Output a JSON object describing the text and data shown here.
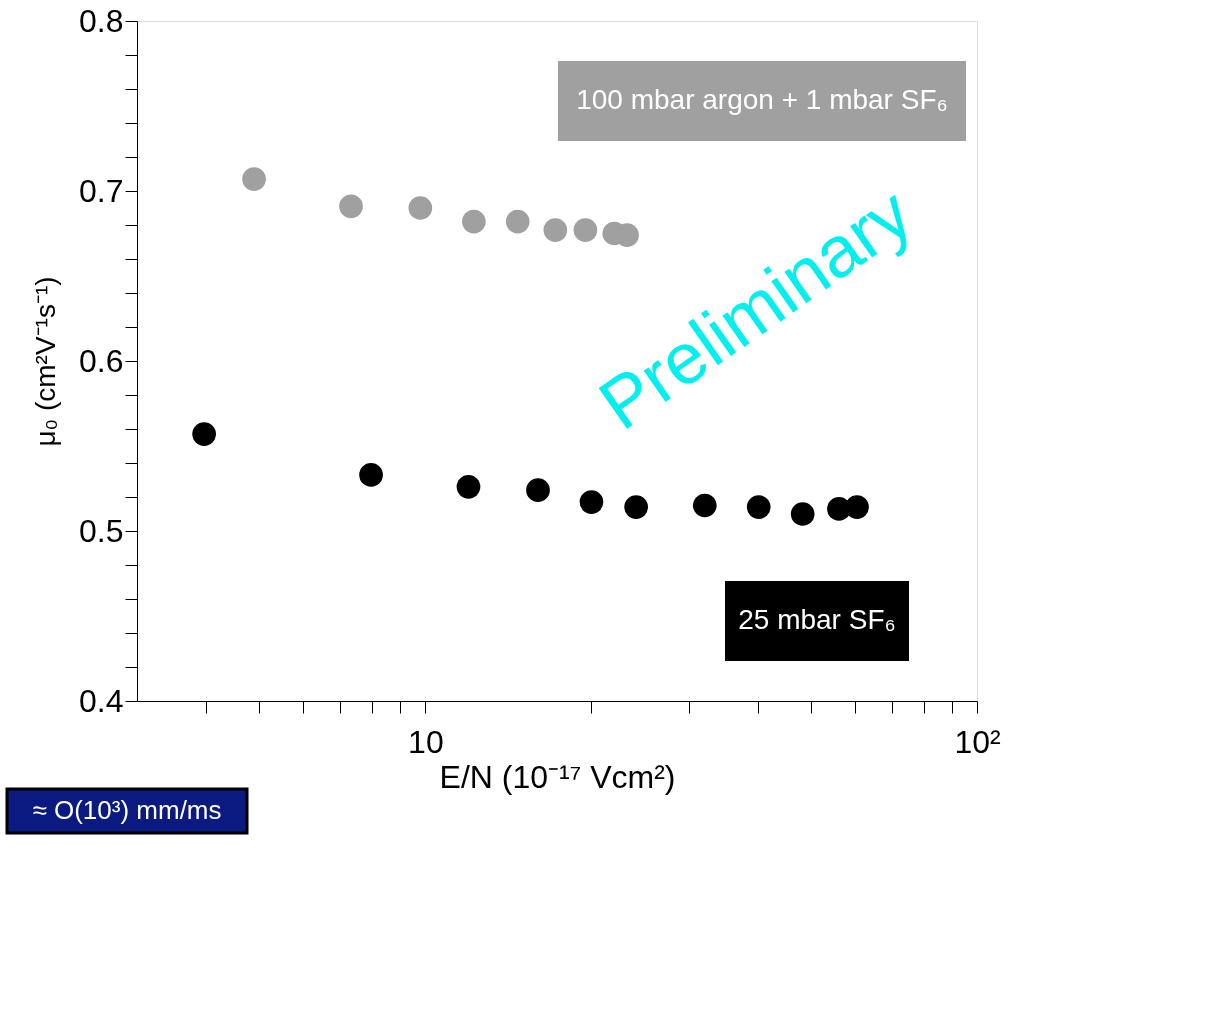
{
  "chart_data": {
    "type": "scatter",
    "xlabel": "E/N (10⁻¹⁷ Vcm²)",
    "ylabel": "μ₀ (cm²V⁻¹s⁻¹)",
    "log": "x",
    "xlim": [
      3,
      100
    ],
    "ylim": [
      0.4,
      0.8
    ],
    "xticks": [
      {
        "value": 4,
        "label": null
      },
      {
        "value": 5,
        "label": null
      },
      {
        "value": 6,
        "label": null
      },
      {
        "value": 7,
        "label": null
      },
      {
        "value": 8,
        "label": null
      },
      {
        "value": 9,
        "label": null
      },
      10,
      {
        "value": 20,
        "label": null
      },
      {
        "value": 30,
        "label": null
      },
      {
        "value": 40,
        "label": null
      },
      {
        "value": 50,
        "label": null
      },
      {
        "value": 60,
        "label": null
      },
      {
        "value": 70,
        "label": null
      },
      {
        "value": 80,
        "label": null
      },
      {
        "value": 90,
        "label": null
      },
      {
        "value": 100,
        "label": "10²"
      }
    ],
    "yticks": [
      0.4,
      {
        "value": 0.42,
        "label": null
      },
      {
        "value": 0.44,
        "label": null
      },
      {
        "value": 0.46,
        "label": null
      },
      {
        "value": 0.48,
        "label": null
      },
      0.5,
      {
        "value": 0.52,
        "label": null
      },
      {
        "value": 0.54,
        "label": null
      },
      {
        "value": 0.56,
        "label": null
      },
      {
        "value": 0.58,
        "label": null
      },
      0.6,
      {
        "value": 0.62,
        "label": null
      },
      {
        "value": 0.64,
        "label": null
      },
      {
        "value": 0.66,
        "label": null
      },
      {
        "value": 0.68,
        "label": null
      },
      0.7,
      {
        "value": 0.72,
        "label": null
      },
      {
        "value": 0.74,
        "label": null
      },
      {
        "value": 0.76,
        "label": null
      },
      {
        "value": 0.78,
        "label": null
      },
      0.8
    ],
    "grid": false,
    "legend": false,
    "marker": "circle",
    "series": [
      {
        "name": "100 mbar argon + 1 mbar SF₆",
        "color": "#a0a0a0",
        "x": [
          4.89,
          7.33,
          9.79,
          12.24,
          14.7,
          17.2,
          19.5,
          22.0,
          23.2
        ],
        "values": [
          0.707,
          0.691,
          0.69,
          0.682,
          0.682,
          0.677,
          0.677,
          0.675,
          0.674
        ]
      },
      {
        "name": "25 mbar SF₆",
        "color": "#000000",
        "x": [
          3.97,
          7.97,
          11.97,
          16.0,
          20.0,
          24.1,
          32.1,
          40.2,
          48.3,
          56.2,
          60.6
        ],
        "values": [
          0.557,
          0.533,
          0.526,
          0.524,
          0.517,
          0.514,
          0.515,
          0.514,
          0.51,
          0.513,
          0.514
        ]
      }
    ],
    "annotations": [
      "Preliminary",
      "≈ O(10³) mm/ms"
    ]
  }
}
